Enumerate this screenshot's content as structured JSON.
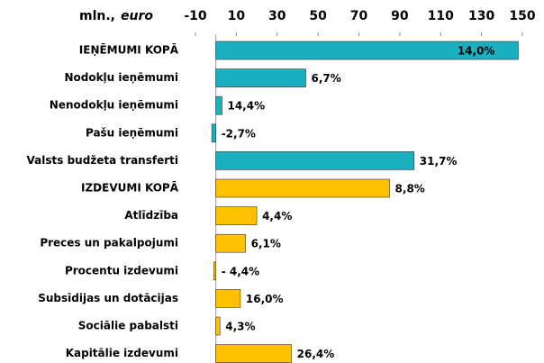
{
  "chart_data": {
    "type": "bar",
    "orientation": "horizontal",
    "unit_label": "mln.,",
    "unit_label_italic": "euro",
    "categories": [
      "IEŅĒMUMI KOPĀ",
      "Nodokļu ieņēmumi",
      "Nenodokļu ieņēmumi",
      "Pašu ieņēmumi",
      "Valsts budžeta transferti",
      "IZDEVUMI KOPĀ",
      "Atlīdzība",
      "Preces un pakalpojumi",
      "Procentu izdevumi",
      "Subsīdijas un dotācijas",
      "Sociālie pabalsti",
      "Kapitālie izdevumi"
    ],
    "values": [
      148,
      44,
      3,
      -2,
      97,
      85,
      20,
      14.5,
      -1,
      12,
      2,
      37
    ],
    "bar_annotations": [
      "14,0%",
      "6,7%",
      "14,4%",
      "-2,7%",
      "31,7%",
      "8,8%",
      "4,4%",
      "6,1%",
      "- 4,4%",
      "16,0%",
      "4,3%",
      "26,4%"
    ],
    "colors": [
      "#1ab0c0",
      "#1ab0c0",
      "#1ab0c0",
      "#1ab0c0",
      "#1ab0c0",
      "#ffc000",
      "#ffc000",
      "#ffc000",
      "#ffc000",
      "#ffc000",
      "#ffc000",
      "#ffc000"
    ],
    "xlim": [
      -10,
      150
    ],
    "xticks": [
      -10,
      10,
      30,
      50,
      70,
      90,
      110,
      130,
      150
    ]
  }
}
